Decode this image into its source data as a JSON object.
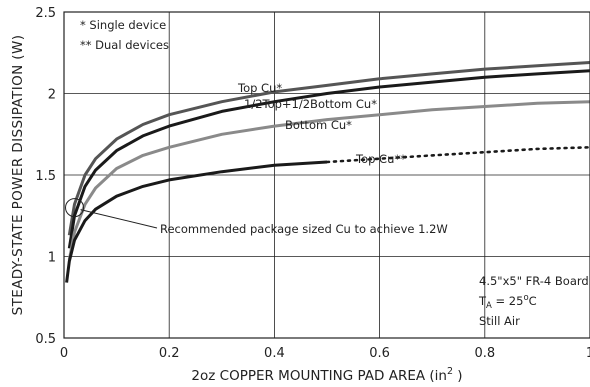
{
  "chart_data": {
    "type": "line",
    "xlabel": "2oz COPPER MOUNTING PAD AREA (in",
    "xlabel_sup": "2",
    "xlabel_close": " )",
    "ylabel": "STEADY-STATE POWER DISSIPATION (W)",
    "xlim": [
      0,
      1
    ],
    "ylim": [
      0.5,
      2.5
    ],
    "xticks": [
      0,
      0.2,
      0.4,
      0.6,
      0.8,
      1
    ],
    "xtick_labels": [
      "0",
      "0.2",
      "0.4",
      "0.6",
      "0.8",
      "1"
    ],
    "yticks": [
      0.5,
      1,
      1.5,
      2,
      2.5
    ],
    "ytick_labels": [
      "0.5",
      "1",
      "1.5",
      "2",
      "2.5"
    ],
    "grid": true,
    "legend_notes": [
      "* Single device",
      "** Dual devices"
    ],
    "board_notes": {
      "line1": "4.5\"x5\" FR-4 Board",
      "line2_prefix": "T",
      "line2_sub": "A",
      "line2_mid": " = 25",
      "line2_sup": "o",
      "line2_suffix": "C",
      "line3": "Still Air"
    },
    "callout": {
      "text": "Recommended package sized Cu to achieve 1.2W",
      "x": 0.02,
      "y": 1.3
    },
    "series": [
      {
        "name": "Top Cu*",
        "color": "#555555",
        "style": "solid",
        "points": [
          [
            0.01,
            1.13
          ],
          [
            0.02,
            1.32
          ],
          [
            0.04,
            1.5
          ],
          [
            0.06,
            1.6
          ],
          [
            0.1,
            1.72
          ],
          [
            0.15,
            1.81
          ],
          [
            0.2,
            1.87
          ],
          [
            0.3,
            1.95
          ],
          [
            0.4,
            2.01
          ],
          [
            0.5,
            2.05
          ],
          [
            0.6,
            2.09
          ],
          [
            0.7,
            2.12
          ],
          [
            0.8,
            2.15
          ],
          [
            0.9,
            2.17
          ],
          [
            1.0,
            2.19
          ]
        ]
      },
      {
        "name": "1/2Top+1/2Bottom Cu*",
        "color": "#1a1a1a",
        "style": "solid",
        "points": [
          [
            0.01,
            1.05
          ],
          [
            0.02,
            1.25
          ],
          [
            0.04,
            1.43
          ],
          [
            0.06,
            1.53
          ],
          [
            0.1,
            1.65
          ],
          [
            0.15,
            1.74
          ],
          [
            0.2,
            1.8
          ],
          [
            0.3,
            1.89
          ],
          [
            0.4,
            1.95
          ],
          [
            0.5,
            2.0
          ],
          [
            0.6,
            2.04
          ],
          [
            0.7,
            2.07
          ],
          [
            0.8,
            2.1
          ],
          [
            0.9,
            2.12
          ],
          [
            1.0,
            2.14
          ]
        ]
      },
      {
        "name": "Bottom Cu*",
        "color": "#8a8a8a",
        "style": "solid",
        "points": [
          [
            0.01,
            0.98
          ],
          [
            0.02,
            1.15
          ],
          [
            0.04,
            1.32
          ],
          [
            0.06,
            1.42
          ],
          [
            0.1,
            1.54
          ],
          [
            0.15,
            1.62
          ],
          [
            0.2,
            1.67
          ],
          [
            0.3,
            1.75
          ],
          [
            0.4,
            1.8
          ],
          [
            0.5,
            1.84
          ],
          [
            0.6,
            1.87
          ],
          [
            0.7,
            1.9
          ],
          [
            0.8,
            1.92
          ],
          [
            0.9,
            1.94
          ],
          [
            1.0,
            1.95
          ]
        ]
      },
      {
        "name": "Top Cu**",
        "color": "#1a1a1a",
        "style": "solid-then-dotted",
        "dotted_from": 0.5,
        "points": [
          [
            0.005,
            0.84
          ],
          [
            0.01,
            0.97
          ],
          [
            0.02,
            1.1
          ],
          [
            0.04,
            1.22
          ],
          [
            0.06,
            1.29
          ],
          [
            0.1,
            1.37
          ],
          [
            0.15,
            1.43
          ],
          [
            0.2,
            1.47
          ],
          [
            0.3,
            1.52
          ],
          [
            0.4,
            1.56
          ],
          [
            0.5,
            1.58
          ],
          [
            0.6,
            1.6
          ],
          [
            0.7,
            1.62
          ],
          [
            0.8,
            1.64
          ],
          [
            0.9,
            1.66
          ],
          [
            1.0,
            1.67
          ]
        ]
      }
    ]
  }
}
